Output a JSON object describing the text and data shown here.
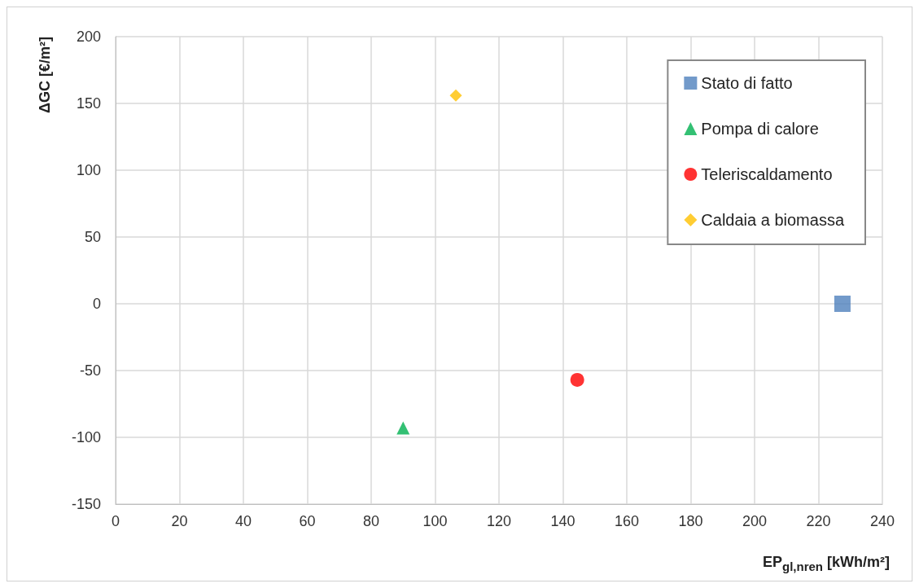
{
  "chart_data": {
    "type": "scatter",
    "xlabel": "EP$_{gl,nren}$ [kWh/m²]",
    "ylabel": "ΔGC [€/m²]",
    "xlim": [
      0,
      240
    ],
    "xticks": [
      0,
      20,
      40,
      60,
      80,
      100,
      120,
      140,
      160,
      180,
      200,
      220,
      240
    ],
    "ylim": [
      -150,
      200
    ],
    "yticks": [
      -150,
      -100,
      -50,
      0,
      50,
      100,
      150,
      200
    ],
    "grid": true,
    "legend": "top right",
    "series": [
      {
        "name": "Stato di fatto",
        "color": "#4f81bd",
        "marker": "square",
        "x": [
          227.5
        ],
        "values": [
          0
        ]
      },
      {
        "name": "Pompa di calore",
        "color": "#00b050",
        "marker": "triangle",
        "x": [
          90
        ],
        "values": [
          -93
        ]
      },
      {
        "name": "Teleriscaldamento",
        "color": "#ff0000",
        "marker": "circle",
        "x": [
          144.5
        ],
        "values": [
          -57
        ]
      },
      {
        "name": "Caldaia a biomassa",
        "color": "#ffc000",
        "marker": "diamond",
        "x": [
          106.5
        ],
        "values": [
          156
        ]
      }
    ]
  }
}
